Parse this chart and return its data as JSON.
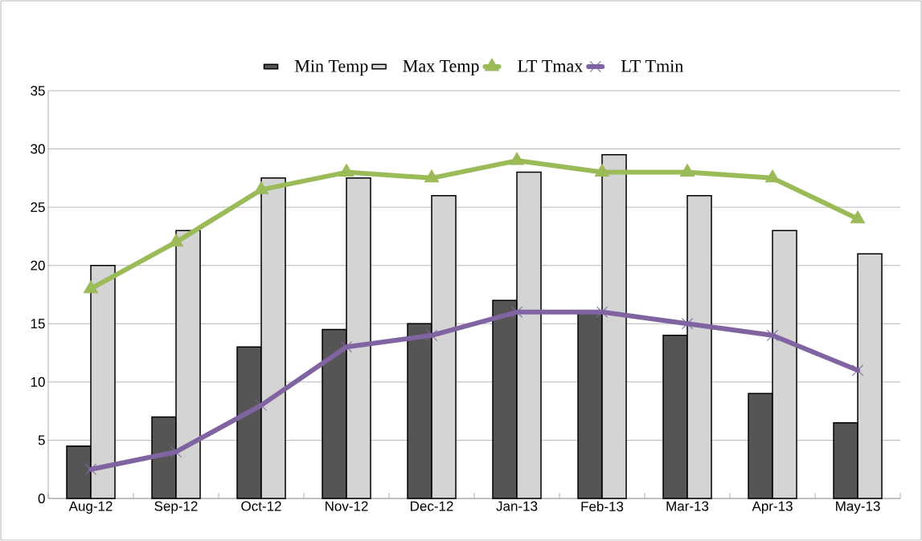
{
  "chart_data": {
    "type": "bar",
    "categories": [
      "Aug-12",
      "Sep-12",
      "Oct-12",
      "Nov-12",
      "Dec-12",
      "Jan-13",
      "Feb-13",
      "Mar-13",
      "Apr-13",
      "May-13"
    ],
    "ylim": [
      0,
      35
    ],
    "yticks": [
      0,
      5,
      10,
      15,
      20,
      25,
      30,
      35
    ],
    "grid": "y",
    "legend": "top",
    "series": [
      {
        "name": "Min Temp",
        "color": "#555555",
        "values": [
          4.5,
          7,
          13,
          14.5,
          15,
          17,
          16,
          14,
          9,
          6.5
        ]
      },
      {
        "name": "Max Temp",
        "color": "#d4d4d4",
        "values": [
          20,
          23,
          27.5,
          27.5,
          26,
          28,
          29.5,
          26,
          23,
          21
        ]
      },
      {
        "name": "LT Tmax",
        "type": "line",
        "color": "#9bbb59",
        "marker": "triangle",
        "values": [
          18,
          22,
          26.5,
          28,
          27.5,
          29,
          28,
          28,
          27.5,
          24
        ]
      },
      {
        "name": "LT Tmin",
        "type": "line",
        "color": "#8064a2",
        "marker": "cross",
        "values": [
          2.5,
          4,
          8,
          13,
          14,
          16,
          16,
          15,
          14,
          11
        ]
      }
    ]
  }
}
